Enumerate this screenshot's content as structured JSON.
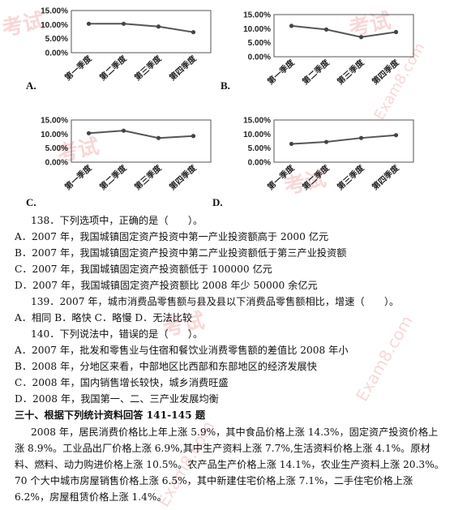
{
  "charts": [
    {
      "option": "A.",
      "y_ticks": [
        "15.00%",
        "10.00%",
        "5.00%",
        "0.00%"
      ],
      "categories": [
        "第一季度",
        "第二季度",
        "第三季度",
        "第四季度"
      ],
      "values": [
        10.3,
        10.3,
        9.3,
        7.3
      ],
      "ylim": [
        0,
        15
      ]
    },
    {
      "option": "B.",
      "y_ticks": [
        "15.00%",
        "10.00%",
        "5.00%",
        "0.00%"
      ],
      "categories": [
        "第一季度",
        "第二季度",
        "第三季度",
        "第四季度"
      ],
      "values": [
        11.0,
        9.7,
        7.0,
        8.8
      ],
      "ylim": [
        0,
        15
      ]
    },
    {
      "option": "C.",
      "y_ticks": [
        "15.00%",
        "10.00%",
        "5.00%",
        "0.00%"
      ],
      "categories": [
        "第一季度",
        "第二季度",
        "第三季度",
        "第四季度"
      ],
      "values": [
        10.3,
        11.2,
        8.6,
        9.3
      ],
      "ylim": [
        0,
        15
      ]
    },
    {
      "option": "D.",
      "y_ticks": [
        "15.00%",
        "10.00%",
        "5.00%",
        "0.00%"
      ],
      "categories": [
        "第一季度",
        "第二季度",
        "第三季度",
        "第四季度"
      ],
      "values": [
        6.5,
        7.2,
        8.6,
        9.6
      ],
      "ylim": [
        0,
        15
      ]
    }
  ],
  "chart_data": [
    {
      "type": "line",
      "categories": [
        "第一季度",
        "第二季度",
        "第三季度",
        "第四季度"
      ],
      "values": [
        10.3,
        10.3,
        9.3,
        7.3
      ],
      "ylim": [
        0,
        15
      ]
    },
    {
      "type": "line",
      "categories": [
        "第一季度",
        "第二季度",
        "第三季度",
        "第四季度"
      ],
      "values": [
        11.0,
        9.7,
        7.0,
        8.8
      ],
      "ylim": [
        0,
        15
      ]
    },
    {
      "type": "line",
      "categories": [
        "第一季度",
        "第二季度",
        "第三季度",
        "第四季度"
      ],
      "values": [
        10.3,
        11.2,
        8.6,
        9.3
      ],
      "ylim": [
        0,
        15
      ]
    },
    {
      "type": "line",
      "categories": [
        "第一季度",
        "第二季度",
        "第三季度",
        "第四季度"
      ],
      "values": [
        6.5,
        7.2,
        8.6,
        9.6
      ],
      "ylim": [
        0,
        15
      ]
    }
  ],
  "q138": {
    "stem": "138．下列选项中，正确的是（　　）。",
    "a": "A．2007 年，我国城镇固定资产投资中第一产业投资额高于 2000 亿元",
    "b": "B．2007 年，我国城镇固定资产投资中第二产业投资额低于第三产业投资额",
    "c": "C．2007 年，我国城镇固定资产投资额低于 100000 亿元",
    "d": "D．2007 年，我国城镇固定资产投资额比 2008 年少 50000 余亿元"
  },
  "q139": {
    "stem": "139．2007 年，城市消费品零售额与县及县以下消费品零售额相比，增速（　　）。",
    "options": "A．相同 B．略快 C．略慢 D．无法比较"
  },
  "q140": {
    "stem": "140．下列说法中，错误的是（　　）。",
    "a": "A．2007 年，批发和零售业与住宿和餐饮业消费零售额的差值比 2008 年小",
    "b": "B．2008 年，分地区来看，中部地区比西部和东部地区的经济发展快",
    "c": "C．2008 年，国内销售增长较快，城乡消费旺盛",
    "d": "D．2008 年，我国第一、二、三产业发展均衡"
  },
  "section": {
    "title": "三十、根据下列统计资料回答 141-145 题",
    "paragraph": "2008 年，居民消费价格比上年上涨 5.9%，其中食品价格上涨 14.3%，固定资产投资价格上涨 8.9%。工业品出厂价格上涨 6.9%,其中生产资料上涨 7.7%,生活资料价格上涨 4.1%。原材料、燃料、动力购进价格上涨 10.5%。农产品生产价格上涨 14.1%，农业生产资料上涨 20.3%。70 个大中城市房屋销售价格上涨 6.5%，其中新建住宅价格上涨 7.1%，二手住宅价格上涨 6.2%，房屋租赁价格上涨 1.4%。"
  },
  "watermark": {
    "logo_text": "考试",
    "site_text": "Exam8.com",
    "color": "#f3b7b7"
  }
}
